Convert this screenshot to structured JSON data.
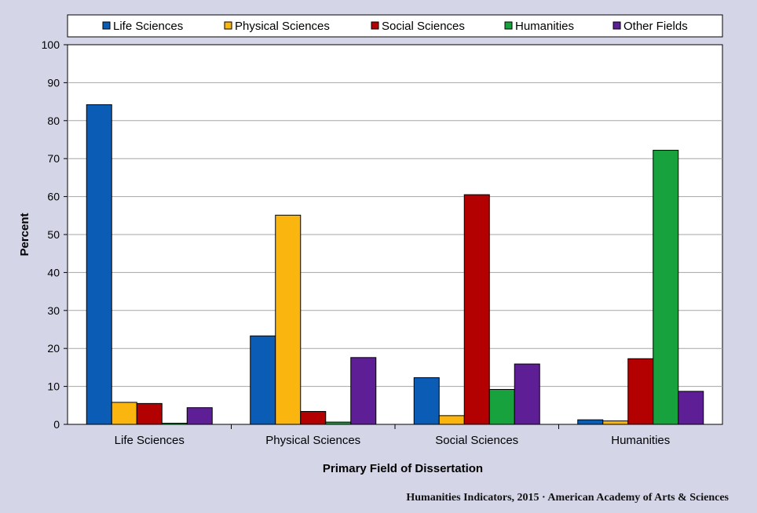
{
  "credit": "Humanities Indicators, 2015 · American Academy of Arts & Sciences",
  "chart_data": {
    "type": "bar",
    "title": "",
    "xlabel": "Primary Field of Dissertation",
    "ylabel": "Percent",
    "ylim": [
      0,
      100
    ],
    "yticks": [
      0,
      10,
      20,
      30,
      40,
      50,
      60,
      70,
      80,
      90,
      100
    ],
    "grid": true,
    "legend_position": "top",
    "categories": [
      "Life Sciences",
      "Physical Sciences",
      "Social Sciences",
      "Humanities"
    ],
    "series": [
      {
        "name": "Life Sciences",
        "color": "#0b5cb5",
        "values": [
          84.2,
          23.3,
          12.3,
          1.2
        ]
      },
      {
        "name": "Physical Sciences",
        "color": "#fbb50f",
        "values": [
          5.8,
          55.1,
          2.3,
          0.9
        ]
      },
      {
        "name": "Social Sciences",
        "color": "#b30000",
        "values": [
          5.5,
          3.4,
          60.5,
          17.3
        ]
      },
      {
        "name": "Humanities",
        "color": "#17a23d",
        "values": [
          0.3,
          0.6,
          9.2,
          72.2
        ]
      },
      {
        "name": "Other Fields",
        "color": "#5e1e95",
        "values": [
          4.4,
          17.6,
          15.9,
          8.7
        ]
      }
    ]
  }
}
